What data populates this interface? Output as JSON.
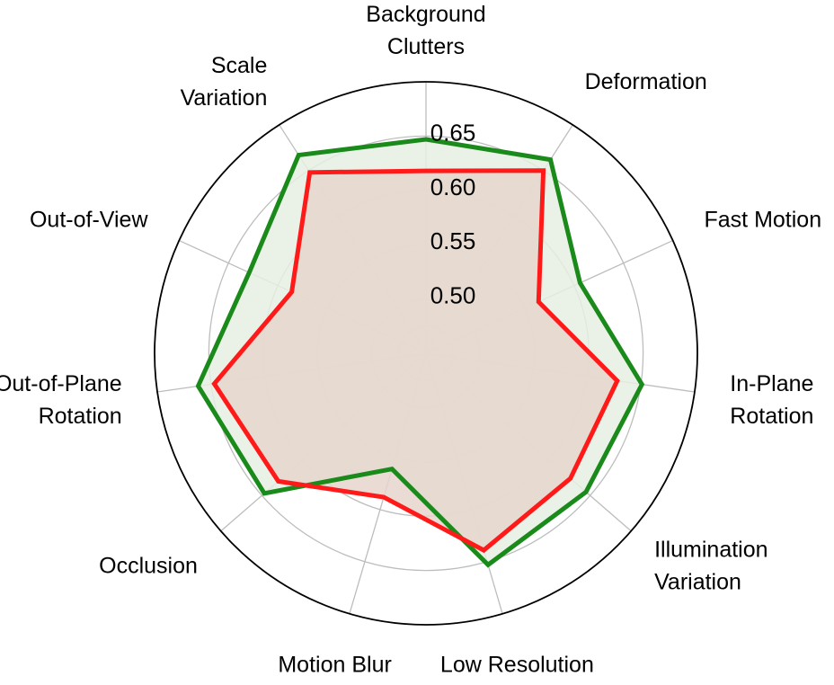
{
  "chart_data": {
    "type": "radar",
    "axes": [
      [
        "Background",
        "Clutters"
      ],
      [
        "Deformation"
      ],
      [
        "Fast Motion"
      ],
      [
        "In-Plane",
        "Rotation"
      ],
      [
        "Illumination",
        "Variation"
      ],
      [
        "Low Resolution"
      ],
      [
        "Motion Blur"
      ],
      [
        "Occlusion"
      ],
      [
        "Out-of-Plane",
        "Rotation"
      ],
      [
        "Out-of-View"
      ],
      [
        "Scale",
        "Variation"
      ]
    ],
    "rticks": [
      "0.50",
      "0.55",
      "0.60",
      "0.65"
    ],
    "rtick_values": [
      0.5,
      0.55,
      0.6,
      0.65
    ],
    "rlim": [
      0.45,
      0.7
    ],
    "grid": true,
    "series": [
      {
        "values": [
          0.647,
          0.662,
          0.606,
          0.651,
          0.645,
          0.653,
          0.561,
          0.647,
          0.662,
          0.629,
          0.667
        ],
        "color": "#1a8a1a",
        "fill": "#e6f0e3"
      },
      {
        "values": [
          0.618,
          0.65,
          0.564,
          0.628,
          0.626,
          0.639,
          0.588,
          0.63,
          0.647,
          0.586,
          0.648
        ],
        "color": "#ff1a1a",
        "fill": "#e6d6cc"
      }
    ]
  }
}
